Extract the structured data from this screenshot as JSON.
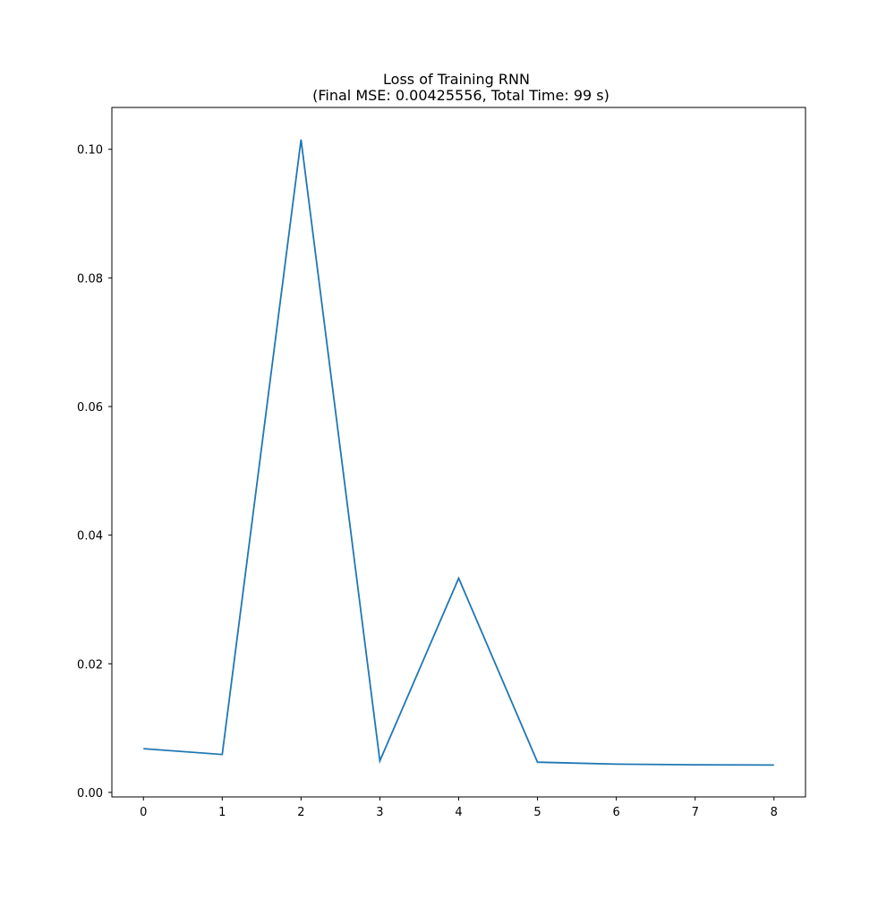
{
  "chart_data": {
    "type": "line",
    "title": "Loss of Training RNN",
    "subtitle": "(Final MSE: 0.00425556, Total Time: 99 s)",
    "xlabel": "",
    "ylabel": "",
    "x": [
      0,
      1,
      2,
      3,
      4,
      5,
      6,
      7,
      8
    ],
    "series": [
      {
        "color": "#1f77b4",
        "values": [
          0.0068,
          0.0059,
          0.1015,
          0.0049,
          0.0333,
          0.0047,
          0.0044,
          0.0043,
          0.00425556
        ]
      }
    ],
    "xlim": [
      -0.4,
      8.4
    ],
    "ylim": [
      -0.0007,
      0.1065
    ],
    "x_ticks": [
      0,
      1,
      2,
      3,
      4,
      5,
      6,
      7,
      8
    ],
    "x_tick_labels": [
      "0",
      "1",
      "2",
      "3",
      "4",
      "5",
      "6",
      "7",
      "8"
    ],
    "y_ticks": [
      0.0,
      0.02,
      0.04,
      0.06,
      0.08,
      0.1
    ],
    "y_tick_labels": [
      "0.00",
      "0.02",
      "0.04",
      "0.06",
      "0.08",
      "0.10"
    ],
    "grid": false,
    "legend": "none"
  }
}
